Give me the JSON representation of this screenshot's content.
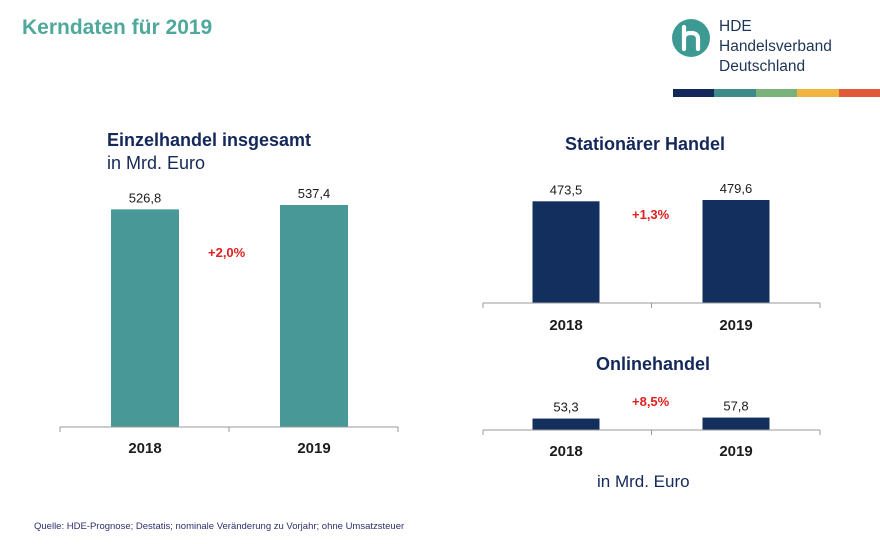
{
  "slide_title": "Kerndaten für 2019",
  "logo": {
    "line1": "HDE",
    "line2": "Handelsverband",
    "line3": "Deutschland",
    "icon": "hde-h-logo-icon",
    "stripe_colors": [
      "#14285a",
      "#3d8c8c",
      "#7bb27b",
      "#f0b441",
      "#e05a3a"
    ]
  },
  "colors": {
    "teal": "#479896",
    "navy": "#132f5e",
    "growth_red": "#e02020"
  },
  "chart_data": [
    {
      "id": "einzelhandel",
      "type": "bar",
      "title": "Einzelhandel insgesamt",
      "subtitle": "in Mrd. Euro",
      "categories": [
        "2018",
        "2019"
      ],
      "values": [
        526.8,
        537.4
      ],
      "value_labels": [
        "526,8",
        "537,4"
      ],
      "growth_label": "+2,0%",
      "color": "#479896",
      "ylim": [
        0,
        537.4
      ]
    },
    {
      "id": "stationaer",
      "type": "bar",
      "title": "Stationärer Handel",
      "categories": [
        "2018",
        "2019"
      ],
      "values": [
        473.5,
        479.6
      ],
      "value_labels": [
        "473,5",
        "479,6"
      ],
      "growth_label": "+1,3%",
      "color": "#132f5e",
      "ylim": [
        0,
        479.6
      ]
    },
    {
      "id": "online",
      "type": "bar",
      "title": "Onlinehandel",
      "categories": [
        "2018",
        "2019"
      ],
      "values": [
        53.3,
        57.8
      ],
      "value_labels": [
        "53,3",
        "57,8"
      ],
      "growth_label": "+8,5%",
      "color": "#132f5e",
      "ylim": [
        0,
        479.6
      ]
    }
  ],
  "unit_note": "in Mrd. Euro",
  "footnote": "Quelle: HDE-Prognose; Destatis; nominale Veränderung zu Vorjahr; ohne Umsatzsteuer"
}
